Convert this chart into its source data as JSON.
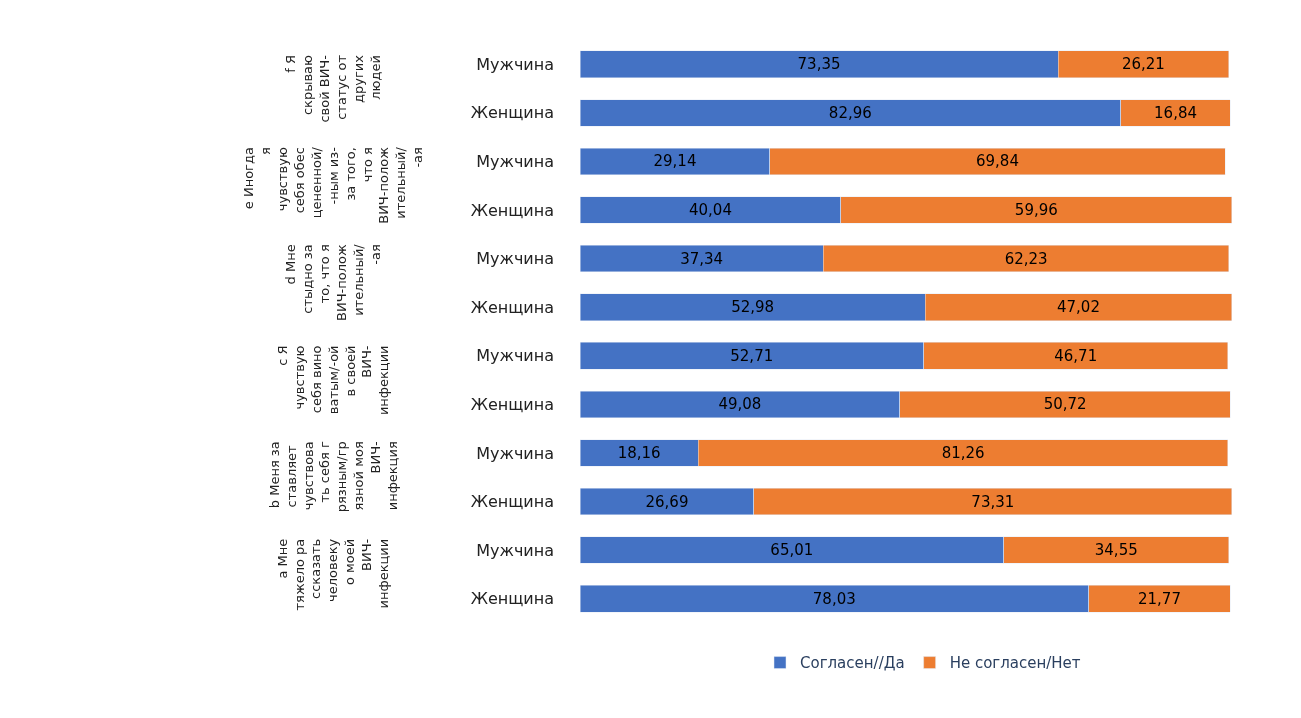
{
  "chart_data": {
    "type": "bar",
    "orientation": "horizontal",
    "stacked": true,
    "legend": "bottom",
    "tick_labels": "y",
    "categories": [
      "Мужчина",
      "Женщина",
      "Мужчина",
      "Женщина",
      "Мужчина",
      "Женщина",
      "Мужчина",
      "Женщина",
      "Мужчина",
      "Женщина",
      "Мужчина",
      "Женщина"
    ],
    "series": [
      {
        "name": "Согласен//Да",
        "color": "#4472c4",
        "values": [
          73.35,
          82.96,
          29.14,
          40.04,
          37.34,
          52.98,
          52.71,
          49.08,
          18.16,
          26.69,
          65.01,
          78.03
        ],
        "value_labels": [
          "73,35",
          "82,96",
          "29,14",
          "40,04",
          "37,34",
          "52,98",
          "52,71",
          "49,08",
          "18,16",
          "26,69",
          "65,01",
          "78,03"
        ]
      },
      {
        "name": "Не согласен/Нет",
        "color": "#ed7d31",
        "values": [
          26.21,
          16.84,
          69.84,
          59.96,
          62.23,
          47.02,
          46.71,
          50.72,
          81.26,
          73.31,
          34.55,
          21.77
        ],
        "value_labels": [
          "26,21",
          "16,84",
          "69,84",
          "59,96",
          "62,23",
          "47,02",
          "46,71",
          "50,72",
          "81,26",
          "73,31",
          "34,55",
          "21,77"
        ]
      }
    ],
    "annotations": [
      "f Я скрываю свой ВИЧ-статус от других людей",
      "e Иногда я чувствую себя обесцененной/-ным из-за того, что я ВИЧ-положительный/-ая",
      "d Мне стыдно за то, что я ВИЧ-положительный/-ая",
      "c Я чувствую себя виноватым/-ой в своей ВИЧ-инфекции",
      "b Меня заставляет чувствовать себя грязным/грязной моя ВИЧ-инфекция",
      "a Мне тяжело рассказать человеку о моей ВИЧ-инфекции"
    ]
  }
}
